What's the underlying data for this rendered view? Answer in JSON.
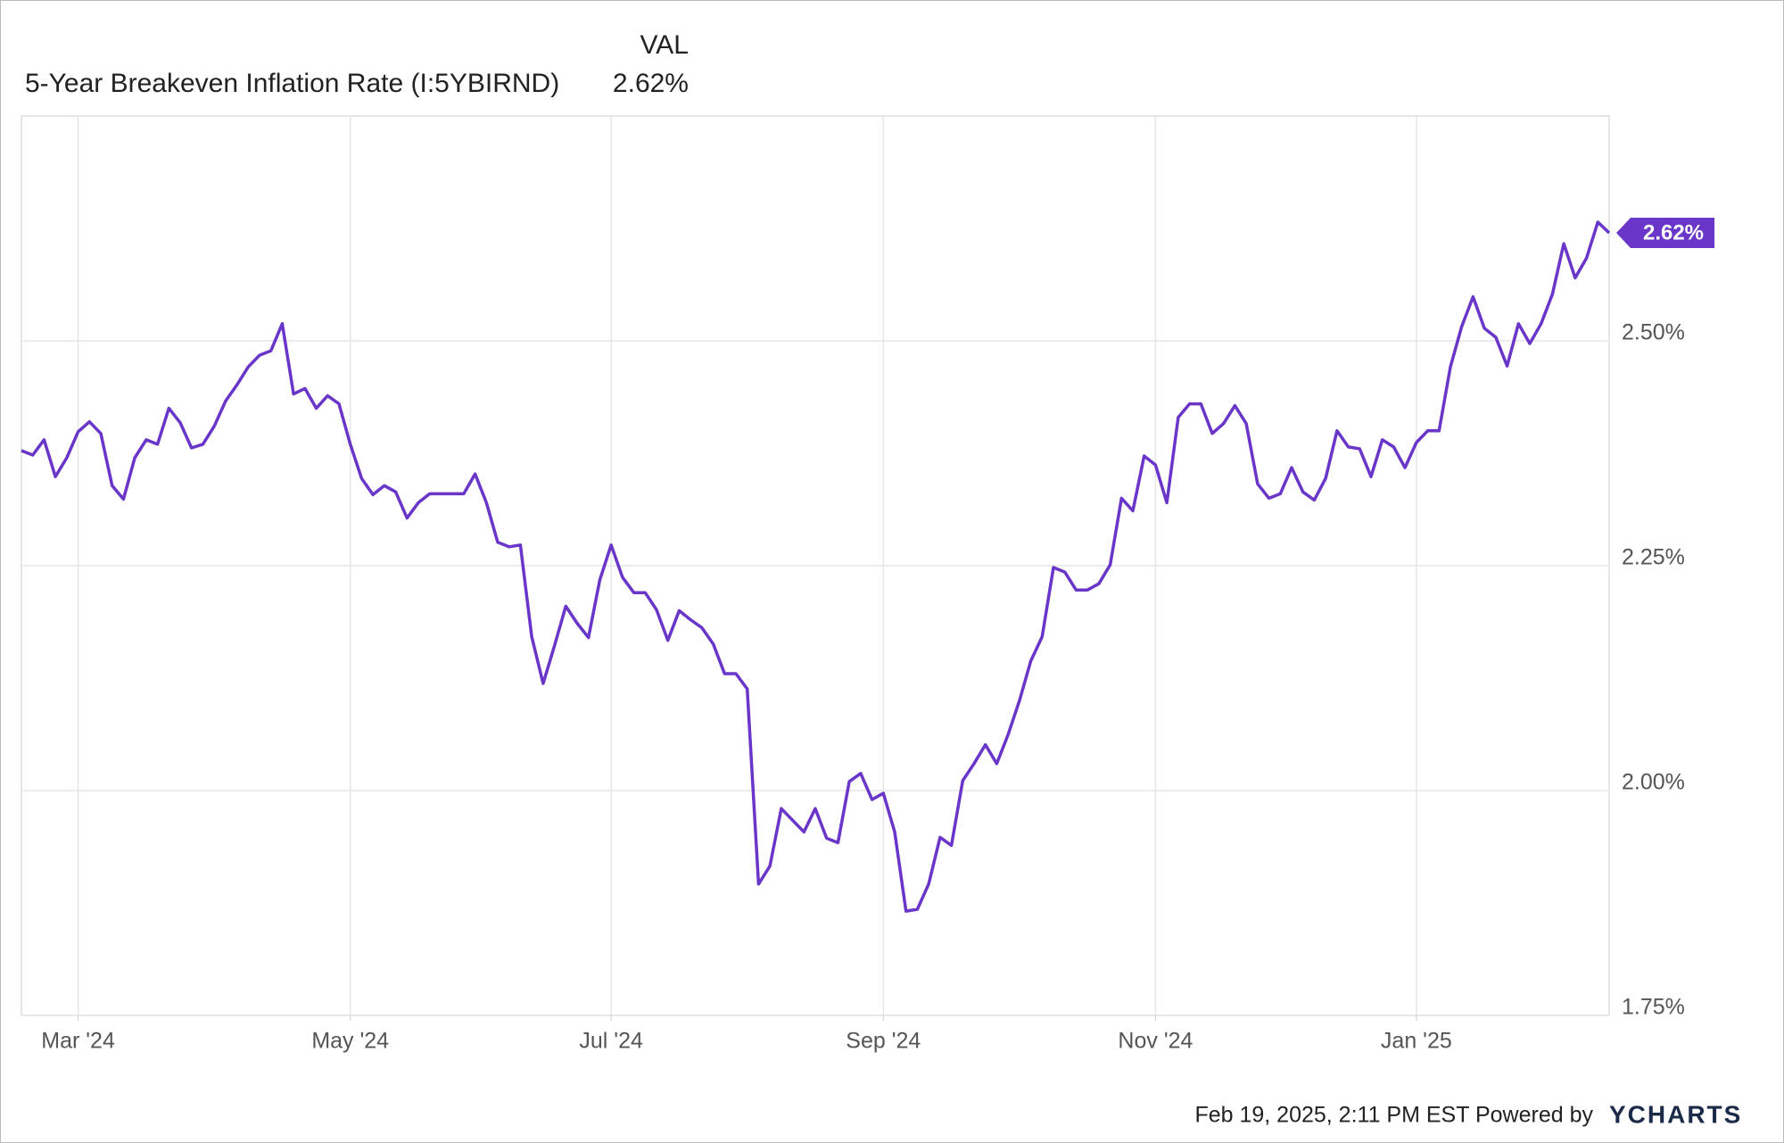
{
  "chart_data": {
    "type": "line",
    "legend_header": "VAL",
    "series": [
      {
        "name": "5-Year Breakeven Inflation Rate (I:5YBIRND)",
        "color": "#6a35c9",
        "values": [
          2.378,
          2.373,
          2.39,
          2.349,
          2.37,
          2.399,
          2.41,
          2.397,
          2.339,
          2.324,
          2.37,
          2.39,
          2.385,
          2.425,
          2.409,
          2.381,
          2.385,
          2.405,
          2.433,
          2.451,
          2.471,
          2.484,
          2.489,
          2.519,
          2.441,
          2.447,
          2.425,
          2.439,
          2.43,
          2.385,
          2.347,
          2.329,
          2.339,
          2.332,
          2.303,
          2.32,
          2.33,
          2.33,
          2.33,
          2.33,
          2.352,
          2.32,
          2.276,
          2.271,
          2.273,
          2.171,
          2.119,
          2.161,
          2.205,
          2.186,
          2.17,
          2.234,
          2.273,
          2.237,
          2.22,
          2.22,
          2.201,
          2.167,
          2.2,
          2.19,
          2.181,
          2.163,
          2.13,
          2.13,
          2.113,
          1.896,
          1.916,
          1.98,
          1.967,
          1.954,
          1.98,
          1.947,
          1.942,
          2.01,
          2.019,
          1.99,
          1.997,
          1.954,
          1.866,
          1.868,
          1.896,
          1.948,
          1.939,
          2.011,
          2.03,
          2.051,
          2.03,
          2.062,
          2.1,
          2.144,
          2.171,
          2.248,
          2.243,
          2.223,
          2.223,
          2.23,
          2.251,
          2.325,
          2.311,
          2.372,
          2.362,
          2.32,
          2.415,
          2.43,
          2.43,
          2.397,
          2.408,
          2.428,
          2.408,
          2.341,
          2.325,
          2.33,
          2.359,
          2.332,
          2.323,
          2.347,
          2.4,
          2.382,
          2.38,
          2.349,
          2.39,
          2.382,
          2.359,
          2.387,
          2.4,
          2.4,
          2.471,
          2.516,
          2.549,
          2.514,
          2.504,
          2.472,
          2.519,
          2.497,
          2.519,
          2.552,
          2.608,
          2.57,
          2.592,
          2.632,
          2.62
        ],
        "value_labels": [
          null,
          null,
          null,
          null,
          null,
          null,
          null,
          null,
          null,
          null,
          null,
          null,
          null,
          null,
          null,
          null,
          null,
          null,
          null,
          null,
          null,
          null,
          null,
          null,
          null,
          null,
          null,
          null,
          null,
          null,
          null,
          null,
          null,
          null,
          null,
          null,
          null,
          null,
          null,
          null,
          null,
          null,
          null,
          null,
          null,
          null,
          null,
          null,
          null,
          null,
          null,
          null,
          null,
          null,
          null,
          null,
          null,
          null,
          null,
          null,
          null,
          null,
          null,
          null,
          null,
          null,
          null,
          null,
          null,
          null,
          null,
          null,
          null,
          null,
          null,
          null,
          null,
          null,
          null,
          null,
          null,
          null,
          null,
          null,
          null,
          null,
          null,
          null,
          null,
          null,
          null,
          null,
          null,
          null,
          null,
          null,
          null,
          null,
          null,
          null,
          null,
          null,
          null,
          null,
          null,
          null,
          null,
          null,
          null,
          null,
          null,
          null,
          null,
          null,
          null,
          null,
          null,
          null,
          null,
          null,
          null,
          null,
          null,
          null,
          null,
          null,
          null,
          null,
          null,
          null,
          null,
          null,
          null,
          null,
          null,
          null,
          null,
          null,
          null,
          null,
          "2.62%"
        ]
      }
    ],
    "categories": [
      null,
      null,
      null,
      null,
      null,
      "Mar '24",
      null,
      null,
      null,
      null,
      null,
      null,
      null,
      null,
      null,
      null,
      null,
      null,
      null,
      null,
      null,
      null,
      null,
      null,
      null,
      null,
      null,
      null,
      null,
      "May '24",
      null,
      null,
      null,
      null,
      null,
      null,
      null,
      null,
      null,
      null,
      null,
      null,
      null,
      null,
      null,
      null,
      null,
      null,
      null,
      null,
      null,
      null,
      "Jul '24",
      null,
      null,
      null,
      null,
      null,
      null,
      null,
      null,
      null,
      null,
      null,
      null,
      null,
      null,
      null,
      null,
      null,
      null,
      null,
      null,
      null,
      null,
      null,
      "Sep '24",
      null,
      null,
      null,
      null,
      null,
      null,
      null,
      null,
      null,
      null,
      null,
      null,
      null,
      null,
      null,
      null,
      null,
      null,
      null,
      null,
      null,
      null,
      null,
      "Nov '24",
      null,
      null,
      null,
      null,
      null,
      null,
      null,
      null,
      null,
      null,
      null,
      null,
      null,
      null,
      null,
      null,
      null,
      null,
      null,
      null,
      null,
      null,
      "Jan '25",
      null,
      null,
      null,
      null,
      null,
      null,
      null,
      null,
      null,
      null,
      null,
      null,
      null,
      null,
      null,
      null,
      null
    ],
    "ylim": [
      1.75,
      2.75
    ],
    "yticks": [
      {
        "value": 1.75,
        "label": "1.75%"
      },
      {
        "value": 2.0,
        "label": "2.00%"
      },
      {
        "value": 2.25,
        "label": "2.25%"
      },
      {
        "value": 2.5,
        "label": "2.50%"
      }
    ],
    "grid": true
  },
  "footer": {
    "text": "Feb 19, 2025, 2:11 PM EST Powered by",
    "brand": "YCHARTS"
  }
}
